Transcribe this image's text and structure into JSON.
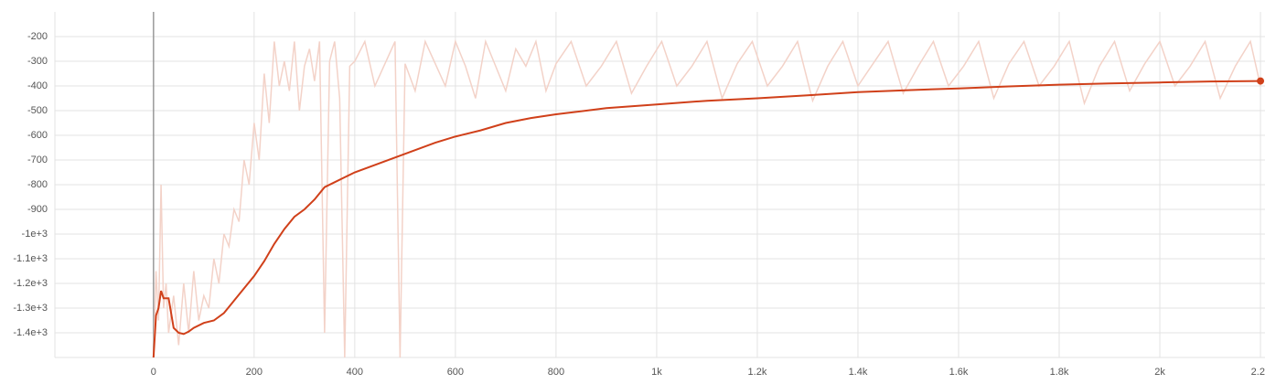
{
  "chart_data": {
    "type": "line",
    "xlim": [
      -196,
      2209
    ],
    "ylim": [
      -1500,
      -100
    ],
    "xticks": [
      0,
      200,
      400,
      600,
      800,
      {
        "value": 1000,
        "label": "1k"
      },
      {
        "value": 1200,
        "label": "1.2k"
      },
      {
        "value": 1400,
        "label": "1.4k"
      },
      {
        "value": 1600,
        "label": "1.6k"
      },
      {
        "value": 1800,
        "label": "1.8k"
      },
      {
        "value": 2000,
        "label": "2k"
      },
      {
        "value": 2200,
        "label": "2.2k"
      }
    ],
    "yticks": [
      -200,
      -300,
      -400,
      -500,
      -600,
      -700,
      -800,
      -900,
      {
        "value": -1000,
        "label": "-1e+3"
      },
      {
        "value": -1100,
        "label": "-1.1e+3"
      },
      {
        "value": -1200,
        "label": "-1.2e+3"
      },
      {
        "value": -1300,
        "label": "-1.3e+3"
      },
      {
        "value": -1400,
        "label": "-1.4e+3"
      }
    ],
    "grid": true,
    "series": [
      {
        "color": "#f3d2c8",
        "x": [
          0,
          5,
          10,
          15,
          20,
          25,
          30,
          40,
          50,
          60,
          70,
          80,
          90,
          100,
          110,
          120,
          130,
          140,
          150,
          160,
          170,
          180,
          190,
          200,
          210,
          220,
          230,
          240,
          250,
          260,
          270,
          280,
          290,
          300,
          310,
          320,
          330,
          340,
          350,
          360,
          370,
          380,
          390,
          400,
          420,
          440,
          460,
          480,
          490,
          500,
          520,
          540,
          560,
          580,
          600,
          620,
          640,
          660,
          680,
          700,
          720,
          740,
          760,
          780,
          800,
          830,
          860,
          890,
          920,
          950,
          980,
          1010,
          1040,
          1070,
          1100,
          1130,
          1160,
          1190,
          1220,
          1250,
          1280,
          1310,
          1340,
          1370,
          1400,
          1430,
          1460,
          1490,
          1520,
          1550,
          1580,
          1610,
          1640,
          1670,
          1700,
          1730,
          1760,
          1790,
          1820,
          1850,
          1880,
          1910,
          1940,
          1970,
          2000,
          2030,
          2060,
          2090,
          2120,
          2150,
          2180,
          2200
        ],
        "values": [
          -1500,
          -1150,
          -1350,
          -800,
          -1300,
          -1200,
          -1400,
          -1250,
          -1450,
          -1200,
          -1400,
          -1150,
          -1350,
          -1250,
          -1300,
          -1100,
          -1200,
          -1000,
          -1050,
          -900,
          -950,
          -700,
          -800,
          -550,
          -700,
          -350,
          -550,
          -220,
          -400,
          -300,
          -420,
          -220,
          -500,
          -320,
          -250,
          -380,
          -220,
          -1400,
          -300,
          -220,
          -450,
          -1500,
          -320,
          -300,
          -220,
          -400,
          -310,
          -220,
          -1500,
          -310,
          -420,
          -220,
          -310,
          -400,
          -220,
          -320,
          -450,
          -220,
          -320,
          -420,
          -250,
          -320,
          -220,
          -420,
          -310,
          -220,
          -400,
          -320,
          -220,
          -430,
          -320,
          -220,
          -400,
          -320,
          -220,
          -450,
          -310,
          -220,
          -400,
          -320,
          -220,
          -460,
          -320,
          -220,
          -400,
          -310,
          -220,
          -430,
          -320,
          -220,
          -400,
          -320,
          -220,
          -450,
          -310,
          -220,
          -400,
          -320,
          -220,
          -470,
          -320,
          -220,
          -420,
          -310,
          -220,
          -400,
          -320,
          -220,
          -450,
          -320,
          -220,
          -400
        ]
      },
      {
        "color": "#d0401a",
        "x": [
          0,
          5,
          10,
          15,
          20,
          30,
          40,
          50,
          60,
          70,
          80,
          100,
          120,
          140,
          160,
          180,
          200,
          220,
          240,
          260,
          280,
          300,
          320,
          340,
          360,
          380,
          400,
          440,
          480,
          520,
          560,
          600,
          650,
          700,
          750,
          800,
          900,
          1000,
          1100,
          1200,
          1300,
          1400,
          1500,
          1600,
          1700,
          1800,
          1900,
          2000,
          2100,
          2200
        ],
        "values": [
          -1500,
          -1330,
          -1300,
          -1230,
          -1260,
          -1260,
          -1380,
          -1400,
          -1405,
          -1395,
          -1380,
          -1360,
          -1350,
          -1320,
          -1270,
          -1220,
          -1170,
          -1110,
          -1040,
          -980,
          -930,
          -900,
          -860,
          -810,
          -790,
          -770,
          -750,
          -720,
          -690,
          -660,
          -630,
          -605,
          -580,
          -550,
          -530,
          -515,
          -490,
          -475,
          -460,
          -450,
          -438,
          -425,
          -417,
          -410,
          -402,
          -395,
          -390,
          -386,
          -382,
          -380
        ]
      }
    ]
  }
}
